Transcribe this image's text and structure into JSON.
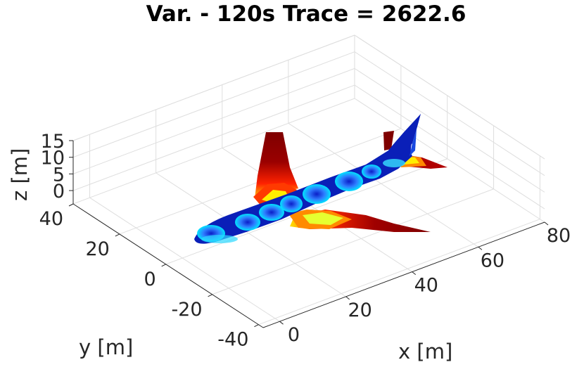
{
  "chart_data": {
    "type": "surface3d",
    "title": "Var. - 120s Trace = 2622.6",
    "xlabel": "x [m]",
    "ylabel": "y [m]",
    "zlabel": "z [m]",
    "x_ticks": [
      "0",
      "20",
      "40",
      "60",
      "80"
    ],
    "y_ticks": [
      "-40",
      "-20",
      "0",
      "20",
      "40"
    ],
    "z_ticks": [
      "0",
      "5",
      "10",
      "15"
    ],
    "xlim": [
      -5,
      80
    ],
    "ylim": [
      -42,
      40
    ],
    "zlim": [
      -4,
      15
    ],
    "grid": true,
    "colormap": "jet",
    "colormap_colors": [
      "#00007f",
      "#0000ff",
      "#00ffff",
      "#ffff00",
      "#ff0000",
      "#7f0000"
    ],
    "object": "aircraft surface mesh colored by variance"
  }
}
